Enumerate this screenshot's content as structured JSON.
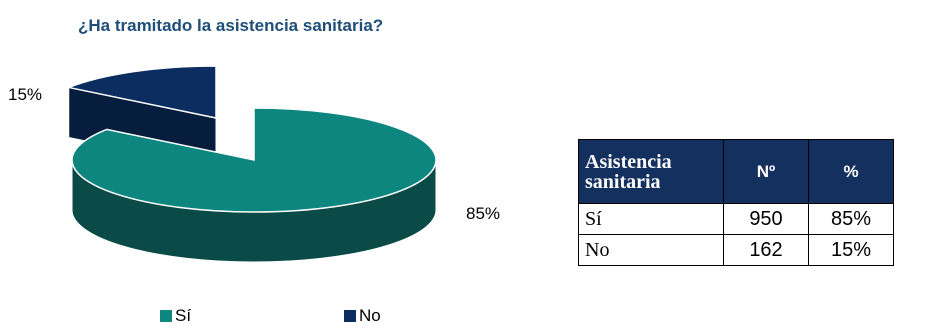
{
  "title": "¿Ha tramitado la asistencia sanitaria?",
  "colors": {
    "si": "#0e8680",
    "no": "#0c2d5f"
  },
  "chart_data": {
    "type": "pie",
    "categories": [
      "Sí",
      "No"
    ],
    "values": [
      85,
      15
    ],
    "labels": [
      "85%",
      "15%"
    ],
    "legend_position": "bottom"
  },
  "legend": [
    {
      "label": "Sí",
      "color": "#0e8680"
    },
    {
      "label": "No",
      "color": "#0c2d5f"
    }
  ],
  "table": {
    "headers": [
      "Asistencia sanitaria",
      "Nº",
      "%"
    ],
    "rows": [
      {
        "label": "Sí",
        "n": "950",
        "pct": "85%"
      },
      {
        "label": "No",
        "n": "162",
        "pct": "15%"
      }
    ]
  }
}
